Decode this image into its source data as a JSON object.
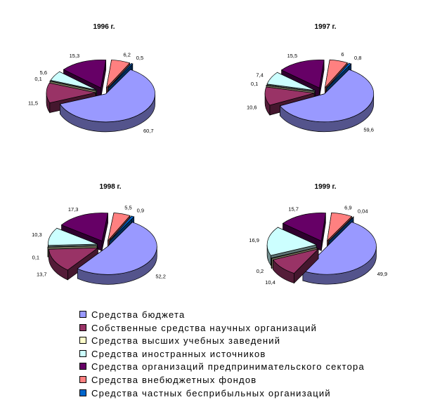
{
  "colors": [
    "#9999ff",
    "#993366",
    "#ffffcc",
    "#ccffff",
    "#660066",
    "#ff8080",
    "#0066cc"
  ],
  "legend": {
    "items": [
      "Средства бюджета",
      "Собственные средства научных организаций",
      "Средства высших учебных заведений",
      "Средства иностранных источников",
      "Средства организаций предпринимательского сектора",
      "Средства внебюджетных фондов",
      "Средства частных бесприбыльных организаций"
    ]
  },
  "chart_data": [
    {
      "type": "pie",
      "title": "1996 г.",
      "values": [
        60.7,
        11.5,
        0.1,
        5.6,
        15.3,
        6.2,
        0.5
      ],
      "labels": [
        "60,7",
        "11,5",
        "0,1",
        "5,6",
        "15,3",
        "6,2",
        "0,5"
      ]
    },
    {
      "type": "pie",
      "title": "1997 г.",
      "values": [
        59.6,
        10.6,
        0.1,
        7.4,
        15.5,
        6,
        0.8
      ],
      "labels": [
        "59,6",
        "10,6",
        "0,1",
        "7,4",
        "15,5",
        "6",
        "0,8"
      ]
    },
    {
      "type": "pie",
      "title": "1998 г.",
      "values": [
        52.2,
        13.7,
        0.1,
        10.3,
        17.3,
        5.5,
        0.9
      ],
      "labels": [
        "52,2",
        "13,7",
        "0,1",
        "10,3",
        "17,3",
        "5,5",
        "0,9"
      ]
    },
    {
      "type": "pie",
      "title": "1999 г.",
      "values": [
        49.9,
        10.4,
        0.2,
        16.9,
        15.7,
        6.9,
        0.04
      ],
      "labels": [
        "49,9",
        "10,4",
        "0,2",
        "16,9",
        "15,7",
        "6,9",
        "0,04"
      ]
    }
  ]
}
